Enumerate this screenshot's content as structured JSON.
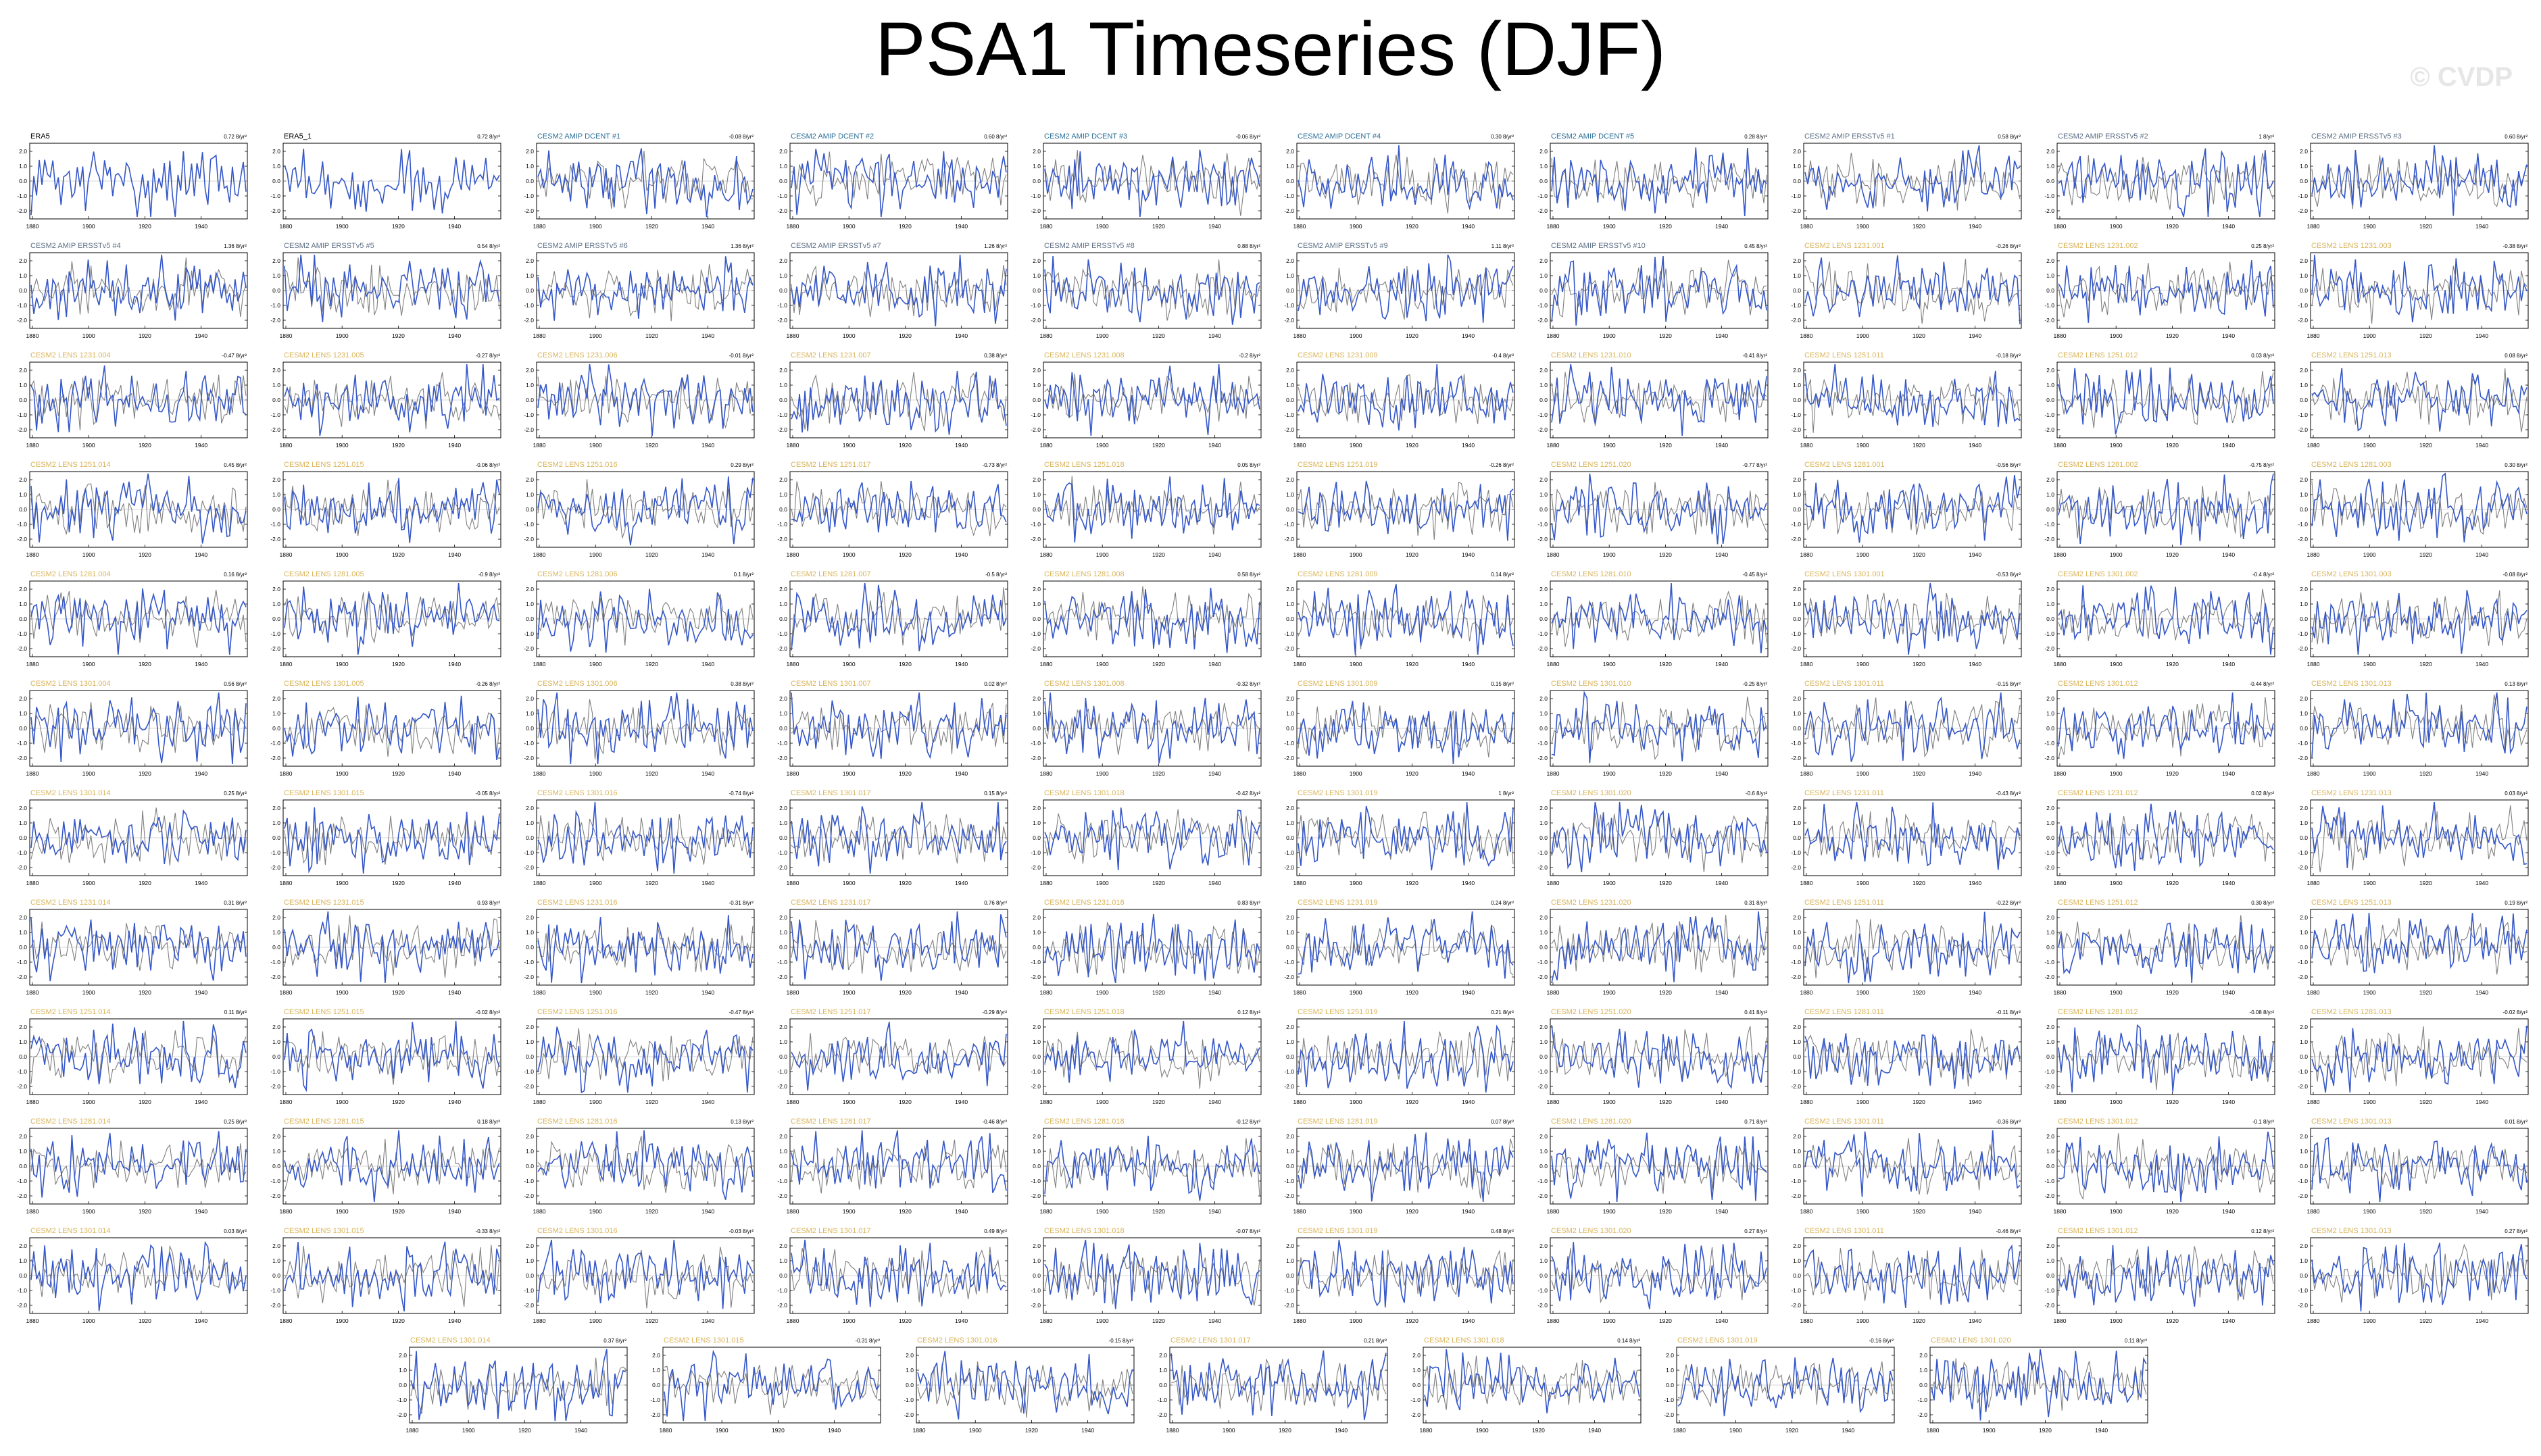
{
  "title": "PSA1 Timeseries (DJF)",
  "watermark": "© CVDP",
  "colors": {
    "model_series": "#3557c7",
    "obs_series": "#7f7f7f",
    "obs_title": "#000000",
    "amip_dcent_title": "#2a6f97",
    "amip_ersst_title": "#5c6e84",
    "lens_title": "#d9b45a"
  },
  "chart_data": {
    "type": "line",
    "layout": "small-multiples grid, 11 full rows of 10 panels plus a centered row of 7",
    "x_ticks": [
      "1880",
      "1900",
      "1920",
      "1940"
    ],
    "y_ticks": [
      "2.0",
      "1.0",
      "0.0",
      "-1.0",
      "-2.0"
    ],
    "series_colors": {
      "model": "#3557c7",
      "observation": "#7f7f7f"
    },
    "panels": [
      {
        "title": "ERA5",
        "trend": "0.72 8/yr²"
      },
      {
        "title": "ERA5_1",
        "trend": "0.72 8/yr²"
      },
      {
        "title": "CESM2 AMIP DCENT #1",
        "trend": "-0.08 8/yr²"
      },
      {
        "title": "CESM2 AMIP DCENT #2",
        "trend": "0.60 8/yr²"
      },
      {
        "title": "CESM2 AMIP DCENT #3",
        "trend": "-0.06 8/yr²"
      },
      {
        "title": "CESM2 AMIP DCENT #4",
        "trend": "0.30 8/yr²"
      },
      {
        "title": "CESM2 AMIP DCENT #5",
        "trend": "0.28 8/yr²"
      },
      {
        "title": "CESM2 AMIP ERSSTv5 #1",
        "trend": "0.58 8/yr²"
      },
      {
        "title": "CESM2 AMIP ERSSTv5 #2",
        "trend": "1 8/yr²"
      },
      {
        "title": "CESM2 AMIP ERSSTv5 #3",
        "trend": "0.60 8/yr²"
      },
      {
        "title": "CESM2 AMIP ERSSTv5 #4",
        "trend": "1.36 8/yr²"
      },
      {
        "title": "CESM2 AMIP ERSSTv5 #5",
        "trend": "0.54 8/yr²"
      },
      {
        "title": "CESM2 AMIP ERSSTv5 #6",
        "trend": "1.36 8/yr²"
      },
      {
        "title": "CESM2 AMIP ERSSTv5 #7",
        "trend": "1.26 8/yr²"
      },
      {
        "title": "CESM2 AMIP ERSSTv5 #8",
        "trend": "0.88 8/yr²"
      },
      {
        "title": "CESM2 AMIP ERSSTv5 #9",
        "trend": "1.11 8/yr²"
      },
      {
        "title": "CESM2 AMIP ERSSTv5 #10",
        "trend": "0.45 8/yr²"
      },
      {
        "title": "CESM2 LENS 1231.001",
        "trend": "-0.26 8/yr²"
      },
      {
        "title": "CESM2 LENS 1231.002",
        "trend": "0.25 8/yr²"
      },
      {
        "title": "CESM2 LENS 1231.003",
        "trend": "-0.38 8/yr²"
      },
      {
        "title": "CESM2 LENS 1231.004",
        "trend": "-0.47 8/yr²"
      },
      {
        "title": "CESM2 LENS 1231.005",
        "trend": "-0.27 8/yr²"
      },
      {
        "title": "CESM2 LENS 1231.006",
        "trend": "-0.01 8/yr²"
      },
      {
        "title": "CESM2 LENS 1231.007",
        "trend": "0.38 8/yr²"
      },
      {
        "title": "CESM2 LENS 1231.008",
        "trend": "-0.2 8/yr²"
      },
      {
        "title": "CESM2 LENS 1231.009",
        "trend": "-0.4 8/yr²"
      },
      {
        "title": "CESM2 LENS 1231.010",
        "trend": "-0.41 8/yr²"
      },
      {
        "title": "CESM2 LENS 1251.011",
        "trend": "-0.18 8/yr²"
      },
      {
        "title": "CESM2 LENS 1251.012",
        "trend": "0.03 8/yr²"
      },
      {
        "title": "CESM2 LENS 1251.013",
        "trend": "0.08 8/yr²"
      },
      {
        "title": "CESM2 LENS 1251.014",
        "trend": "0.45 8/yr²"
      },
      {
        "title": "CESM2 LENS 1251.015",
        "trend": "-0.06 8/yr²"
      },
      {
        "title": "CESM2 LENS 1251.016",
        "trend": "0.29 8/yr²"
      },
      {
        "title": "CESM2 LENS 1251.017",
        "trend": "-0.73 8/yr²"
      },
      {
        "title": "CESM2 LENS 1251.018",
        "trend": "0.05 8/yr²"
      },
      {
        "title": "CESM2 LENS 1251.019",
        "trend": "-0.26 8/yr²"
      },
      {
        "title": "CESM2 LENS 1251.020",
        "trend": "-0.77 8/yr²"
      },
      {
        "title": "CESM2 LENS 1281.001",
        "trend": "-0.56 8/yr²"
      },
      {
        "title": "CESM2 LENS 1281.002",
        "trend": "-0.75 8/yr²"
      },
      {
        "title": "CESM2 LENS 1281.003",
        "trend": "0.30 8/yr²"
      },
      {
        "title": "CESM2 LENS 1281.004",
        "trend": "0.16 8/yr²"
      },
      {
        "title": "CESM2 LENS 1281.005",
        "trend": "-0.9 8/yr²"
      },
      {
        "title": "CESM2 LENS 1281.006",
        "trend": "0.1 8/yr²"
      },
      {
        "title": "CESM2 LENS 1281.007",
        "trend": "-0.5 8/yr²"
      },
      {
        "title": "CESM2 LENS 1281.008",
        "trend": "0.58 8/yr²"
      },
      {
        "title": "CESM2 LENS 1281.009",
        "trend": "0.14 8/yr²"
      },
      {
        "title": "CESM2 LENS 1281.010",
        "trend": "-0.45 8/yr²"
      },
      {
        "title": "CESM2 LENS 1301.001",
        "trend": "-0.53 8/yr²"
      },
      {
        "title": "CESM2 LENS 1301.002",
        "trend": "-0.4 8/yr²"
      },
      {
        "title": "CESM2 LENS 1301.003",
        "trend": "-0.08 8/yr²"
      },
      {
        "title": "CESM2 LENS 1301.004",
        "trend": "0.56 8/yr²"
      },
      {
        "title": "CESM2 LENS 1301.005",
        "trend": "-0.26 8/yr²"
      },
      {
        "title": "CESM2 LENS 1301.006",
        "trend": "0.38 8/yr²"
      },
      {
        "title": "CESM2 LENS 1301.007",
        "trend": "0.02 8/yr²"
      },
      {
        "title": "CESM2 LENS 1301.008",
        "trend": "-0.32 8/yr²"
      },
      {
        "title": "CESM2 LENS 1301.009",
        "trend": "0.15 8/yr²"
      },
      {
        "title": "CESM2 LENS 1301.010",
        "trend": "-0.25 8/yr²"
      },
      {
        "title": "CESM2 LENS 1301.011",
        "trend": "-0.15 8/yr²"
      },
      {
        "title": "CESM2 LENS 1301.012",
        "trend": "-0.44 8/yr²"
      },
      {
        "title": "CESM2 LENS 1301.013",
        "trend": "0.13 8/yr²"
      },
      {
        "title": "CESM2 LENS 1301.014",
        "trend": "0.25 8/yr²"
      },
      {
        "title": "CESM2 LENS 1301.015",
        "trend": "-0.05 8/yr²"
      },
      {
        "title": "CESM2 LENS 1301.016",
        "trend": "-0.74 8/yr²"
      },
      {
        "title": "CESM2 LENS 1301.017",
        "trend": "0.15 8/yr²"
      },
      {
        "title": "CESM2 LENS 1301.018",
        "trend": "-0.42 8/yr²"
      },
      {
        "title": "CESM2 LENS 1301.019",
        "trend": "1 8/yr²"
      },
      {
        "title": "CESM2 LENS 1301.020",
        "trend": "-0.6 8/yr²"
      },
      {
        "title": "CESM2 LENS 1231.011",
        "trend": "-0.43 8/yr²"
      },
      {
        "title": "CESM2 LENS 1231.012",
        "trend": "0.02 8/yr²"
      },
      {
        "title": "CESM2 LENS 1231.013",
        "trend": "0.03 8/yr²"
      },
      {
        "title": "CESM2 LENS 1231.014",
        "trend": "0.31 8/yr²"
      },
      {
        "title": "CESM2 LENS 1231.015",
        "trend": "0.93 8/yr²"
      },
      {
        "title": "CESM2 LENS 1231.016",
        "trend": "-0.31 8/yr²"
      },
      {
        "title": "CESM2 LENS 1231.017",
        "trend": "0.76 8/yr²"
      },
      {
        "title": "CESM2 LENS 1231.018",
        "trend": "0.83 8/yr²"
      },
      {
        "title": "CESM2 LENS 1231.019",
        "trend": "0.24 8/yr²"
      },
      {
        "title": "CESM2 LENS 1231.020",
        "trend": "0.31 8/yr²"
      },
      {
        "title": "CESM2 LENS 1251.011",
        "trend": "-0.22 8/yr²"
      },
      {
        "title": "CESM2 LENS 1251.012",
        "trend": "0.30 8/yr²"
      },
      {
        "title": "CESM2 LENS 1251.013",
        "trend": "0.19 8/yr²"
      },
      {
        "title": "CESM2 LENS 1251.014",
        "trend": "0.11 8/yr²"
      },
      {
        "title": "CESM2 LENS 1251.015",
        "trend": "-0.02 8/yr²"
      },
      {
        "title": "CESM2 LENS 1251.016",
        "trend": "-0.47 8/yr²"
      },
      {
        "title": "CESM2 LENS 1251.017",
        "trend": "-0.29 8/yr²"
      },
      {
        "title": "CESM2 LENS 1251.018",
        "trend": "0.12 8/yr²"
      },
      {
        "title": "CESM2 LENS 1251.019",
        "trend": "0.21 8/yr²"
      },
      {
        "title": "CESM2 LENS 1251.020",
        "trend": "0.41 8/yr²"
      },
      {
        "title": "CESM2 LENS 1281.011",
        "trend": "-0.11 8/yr²"
      },
      {
        "title": "CESM2 LENS 1281.012",
        "trend": "-0.08 8/yr²"
      },
      {
        "title": "CESM2 LENS 1281.013",
        "trend": "-0.02 8/yr²"
      },
      {
        "title": "CESM2 LENS 1281.014",
        "trend": "0.25 8/yr²"
      },
      {
        "title": "CESM2 LENS 1281.015",
        "trend": "0.18 8/yr²"
      },
      {
        "title": "CESM2 LENS 1281.016",
        "trend": "0.13 8/yr²"
      },
      {
        "title": "CESM2 LENS 1281.017",
        "trend": "-0.46 8/yr²"
      },
      {
        "title": "CESM2 LENS 1281.018",
        "trend": "-0.12 8/yr²"
      },
      {
        "title": "CESM2 LENS 1281.019",
        "trend": "0.07 8/yr²"
      },
      {
        "title": "CESM2 LENS 1281.020",
        "trend": "0.71 8/yr²"
      },
      {
        "title": "CESM2 LENS 1301.011",
        "trend": "-0.36 8/yr²"
      },
      {
        "title": "CESM2 LENS 1301.012",
        "trend": "-0.1 8/yr²"
      },
      {
        "title": "CESM2 LENS 1301.013",
        "trend": "0.01 8/yr²"
      },
      {
        "title": "CESM2 LENS 1301.014",
        "trend": "0.03 8/yr²"
      },
      {
        "title": "CESM2 LENS 1301.015",
        "trend": "-0.33 8/yr²"
      },
      {
        "title": "CESM2 LENS 1301.016",
        "trend": "-0.03 8/yr²"
      },
      {
        "title": "CESM2 LENS 1301.017",
        "trend": "0.49 8/yr²"
      },
      {
        "title": "CESM2 LENS 1301.018",
        "trend": "-0.07 8/yr²"
      },
      {
        "title": "CESM2 LENS 1301.019",
        "trend": "0.48 8/yr²"
      },
      {
        "title": "CESM2 LENS 1301.020",
        "trend": "0.27 8/yr²"
      },
      {
        "title": "CESM2 LENS 1301.011",
        "trend": "-0.46 8/yr²"
      },
      {
        "title": "CESM2 LENS 1301.012",
        "trend": "0.12 8/yr²"
      },
      {
        "title": "CESM2 LENS 1301.013",
        "trend": "0.27 8/yr²"
      },
      {
        "title": "CESM2 LENS 1301.014",
        "trend": "0.37 8/yr²"
      },
      {
        "title": "CESM2 LENS 1301.015",
        "trend": "-0.31 8/yr²"
      },
      {
        "title": "CESM2 LENS 1301.016",
        "trend": "-0.15 8/yr²"
      },
      {
        "title": "CESM2 LENS 1301.017",
        "trend": "0.21 8/yr²"
      },
      {
        "title": "CESM2 LENS 1301.018",
        "trend": "0.14 8/yr²"
      },
      {
        "title": "CESM2 LENS 1301.019",
        "trend": "-0.16 8/yr²"
      },
      {
        "title": "CESM2 LENS 1301.020",
        "trend": "0.11 8/yr²"
      }
    ]
  }
}
